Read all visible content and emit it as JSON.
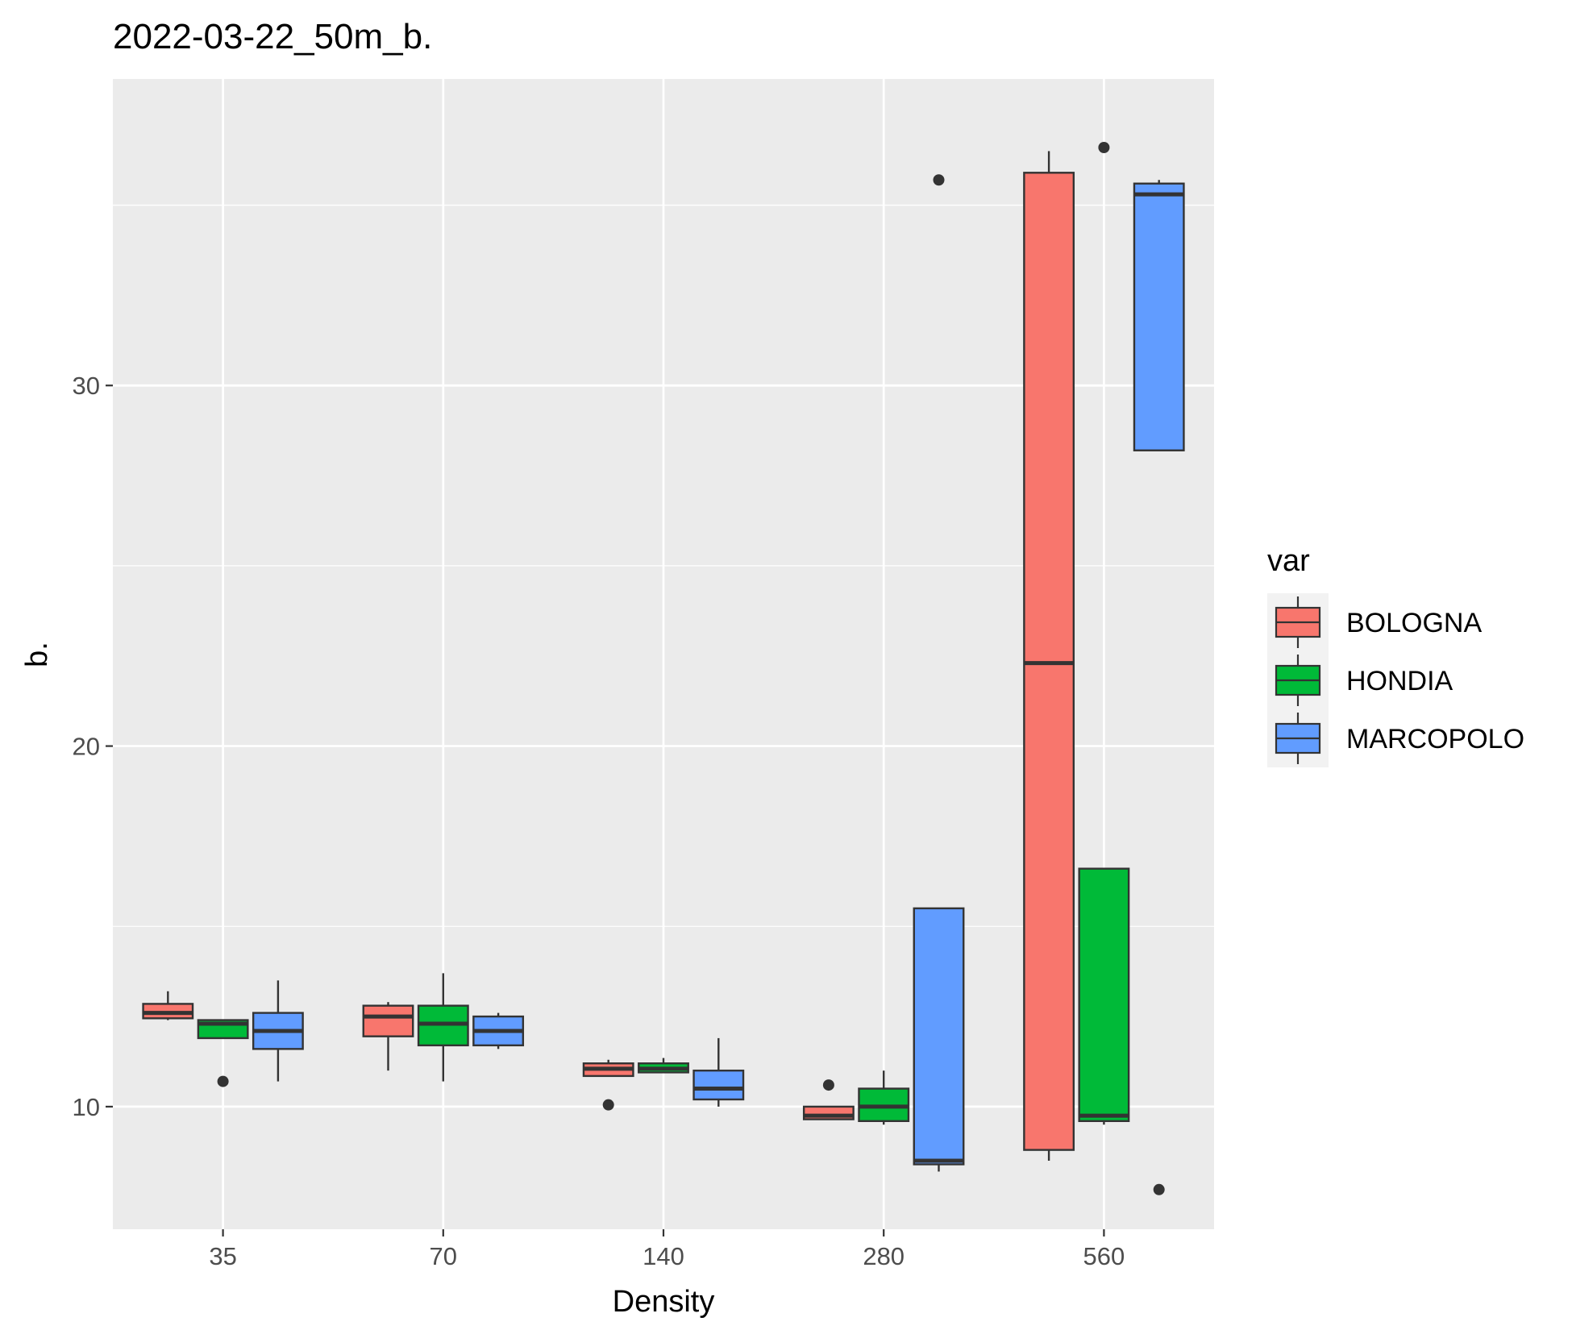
{
  "chart_data": {
    "type": "boxplot",
    "title": "2022-03-22_50m_b.",
    "xlabel": "Density",
    "ylabel": "b.",
    "categories": [
      "35",
      "70",
      "140",
      "280",
      "560"
    ],
    "yticks": [
      10,
      20,
      30
    ],
    "ylim": [
      6.6,
      38.5
    ],
    "grid": true,
    "legend": {
      "title": "var",
      "position": "right"
    },
    "series": [
      {
        "name": "BOLOGNA",
        "color": "#F8766D",
        "boxes": [
          {
            "category": "35",
            "whisker_low": 12.4,
            "q1": 12.45,
            "median": 12.6,
            "q3": 12.85,
            "whisker_high": 13.2
          },
          {
            "category": "70",
            "whisker_low": 11.0,
            "q1": 11.95,
            "median": 12.5,
            "q3": 12.8,
            "whisker_high": 12.9
          },
          {
            "category": "140",
            "whisker_low": 10.85,
            "q1": 10.85,
            "median": 11.05,
            "q3": 11.2,
            "whisker_high": 11.3,
            "outliers": [
              10.05
            ]
          },
          {
            "category": "280",
            "whisker_low": 9.65,
            "q1": 9.65,
            "median": 9.75,
            "q3": 10.0,
            "whisker_high": 10.0,
            "outliers": [
              10.6
            ]
          },
          {
            "category": "560",
            "whisker_low": 8.5,
            "q1": 8.8,
            "median": 22.3,
            "q3": 35.9,
            "whisker_high": 36.5
          }
        ]
      },
      {
        "name": "HONDIA",
        "color": "#00BA38",
        "boxes": [
          {
            "category": "35",
            "whisker_low": 11.9,
            "q1": 11.9,
            "median": 12.3,
            "q3": 12.4,
            "whisker_high": 12.4,
            "outliers": [
              10.7
            ]
          },
          {
            "category": "70",
            "whisker_low": 10.7,
            "q1": 11.7,
            "median": 12.3,
            "q3": 12.8,
            "whisker_high": 13.7
          },
          {
            "category": "140",
            "whisker_low": 10.95,
            "q1": 10.95,
            "median": 11.05,
            "q3": 11.2,
            "whisker_high": 11.35
          },
          {
            "category": "280",
            "whisker_low": 9.5,
            "q1": 9.6,
            "median": 10.0,
            "q3": 10.5,
            "whisker_high": 11.0
          },
          {
            "category": "560",
            "whisker_low": 9.5,
            "q1": 9.6,
            "median": 9.75,
            "q3": 16.6,
            "whisker_high": 16.6,
            "outliers": [
              36.6
            ]
          }
        ]
      },
      {
        "name": "MARCOPOLO",
        "color": "#619CFF",
        "boxes": [
          {
            "category": "35",
            "whisker_low": 10.7,
            "q1": 11.6,
            "median": 12.1,
            "q3": 12.6,
            "whisker_high": 13.5
          },
          {
            "category": "70",
            "whisker_low": 11.6,
            "q1": 11.7,
            "median": 12.1,
            "q3": 12.5,
            "whisker_high": 12.6
          },
          {
            "category": "140",
            "whisker_low": 10.0,
            "q1": 10.2,
            "median": 10.5,
            "q3": 11.0,
            "whisker_high": 11.9
          },
          {
            "category": "280",
            "whisker_low": 8.2,
            "q1": 8.4,
            "median": 8.5,
            "q3": 15.5,
            "whisker_high": 15.5,
            "outliers": [
              35.7
            ]
          },
          {
            "category": "560",
            "whisker_low": 28.2,
            "q1": 28.2,
            "median": 35.3,
            "q3": 35.6,
            "whisker_high": 35.7,
            "outliers": [
              7.7
            ]
          }
        ]
      }
    ]
  }
}
